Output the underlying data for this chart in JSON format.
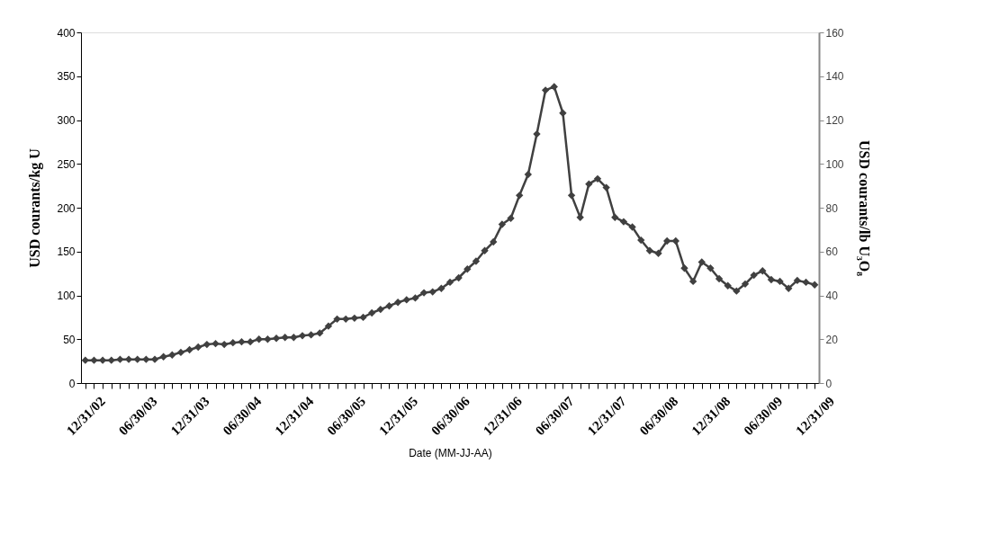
{
  "chart_data": {
    "type": "line",
    "xlabel": "Date (MM-JJ-AA)",
    "ylabel": "USD courants/kg U",
    "y2label": "USD courants/lb U₃O₈",
    "categories": [
      "12/31/02",
      null,
      null,
      null,
      null,
      null,
      "06/30/03",
      null,
      null,
      null,
      null,
      null,
      "12/31/03",
      null,
      null,
      null,
      null,
      null,
      "06/30/04",
      null,
      null,
      null,
      null,
      null,
      "12/31/04",
      null,
      null,
      null,
      null,
      null,
      "06/30/05",
      null,
      null,
      null,
      null,
      null,
      "12/31/05",
      null,
      null,
      null,
      null,
      null,
      "06/30/06",
      null,
      null,
      null,
      null,
      null,
      "12/31/06",
      null,
      null,
      null,
      null,
      null,
      "06/30/07",
      null,
      null,
      null,
      null,
      null,
      "12/31/07",
      null,
      null,
      null,
      null,
      null,
      "06/30/08",
      null,
      null,
      null,
      null,
      null,
      "12/31/08",
      null,
      null,
      null,
      null,
      null,
      "06/30/09",
      null,
      null,
      null,
      null,
      null,
      "12/31/09"
    ],
    "series": [
      {
        "color": "#404040",
        "values": [
          26,
          26,
          26,
          26,
          27,
          27,
          27,
          27,
          27,
          30,
          32,
          35,
          38,
          41,
          44,
          45,
          44,
          46,
          47,
          47,
          50,
          50,
          51,
          52,
          52,
          54,
          55,
          57,
          65,
          73,
          73,
          74,
          75,
          80,
          84,
          88,
          92,
          95,
          97,
          103,
          104,
          108,
          115,
          120,
          130,
          139,
          151,
          161,
          181,
          188,
          214,
          238,
          284,
          334,
          338,
          308,
          214,
          189,
          227,
          233,
          223,
          189,
          184,
          178,
          163,
          151,
          148,
          162,
          162,
          131,
          116,
          138,
          131,
          119,
          111,
          105,
          113,
          123,
          128,
          118,
          116,
          108,
          117,
          115,
          112
        ]
      }
    ],
    "ylim": [
      0,
      400
    ],
    "yticks": [
      0,
      50,
      100,
      150,
      200,
      250,
      300,
      350,
      400
    ],
    "y2lim": [
      0,
      160
    ],
    "y2ticks": [
      0,
      20,
      40,
      60,
      80,
      100,
      120,
      140,
      160
    ],
    "marker": "diamond",
    "line_style": "solid",
    "grid": false
  }
}
